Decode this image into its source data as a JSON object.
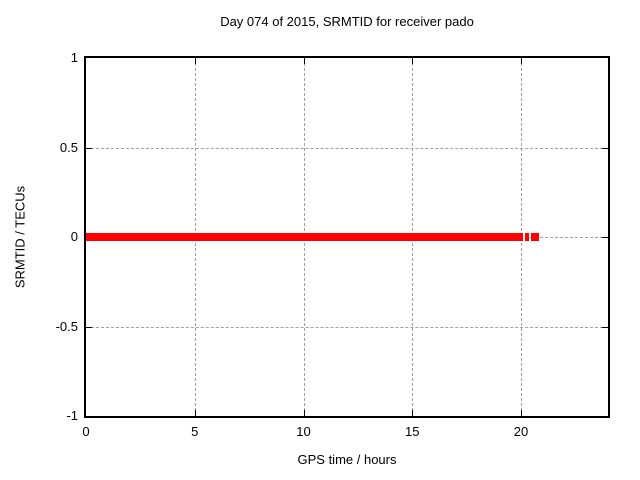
{
  "window": {
    "background": "#ffffff"
  },
  "colors": {
    "axis": "#000000",
    "text": "#000000",
    "grid": "#a0a0a0",
    "series": "#ff0000",
    "background": "#ffffff"
  },
  "chart_data": {
    "type": "scatter",
    "title": "Day 074 of 2015, SRMTID for receiver pado",
    "xlabel": "GPS time / hours",
    "ylabel": "SRMTID / TECUs",
    "xlim": [
      0,
      24
    ],
    "ylim": [
      -1,
      1
    ],
    "xticks": [
      {
        "value": 0,
        "label": "0"
      },
      {
        "value": 5,
        "label": "5"
      },
      {
        "value": 10,
        "label": "10"
      },
      {
        "value": 15,
        "label": "15"
      },
      {
        "value": 20,
        "label": "20"
      }
    ],
    "yticks": [
      {
        "value": 1,
        "label": "1"
      },
      {
        "value": 0.5,
        "label": "0.5"
      },
      {
        "value": 0,
        "label": "0"
      },
      {
        "value": -0.5,
        "label": "-0.5"
      },
      {
        "value": -1,
        "label": "-1"
      }
    ],
    "grid": {
      "show": true,
      "style": "dashed",
      "color": "#a0a0a0",
      "x_gridlines": [
        5,
        10,
        15,
        20
      ],
      "y_gridlines": [
        -0.5,
        0,
        0.5
      ]
    },
    "legend": "none",
    "series": [
      {
        "name": "SRMTID",
        "color": "#ff0000",
        "marker": "filled-square",
        "marker_px": 8,
        "y_value": 0,
        "x_segments": [
          [
            0,
            20.1
          ],
          [
            20.17,
            20.35
          ],
          [
            20.48,
            20.67
          ],
          [
            20.71,
            20.85
          ]
        ]
      }
    ]
  }
}
